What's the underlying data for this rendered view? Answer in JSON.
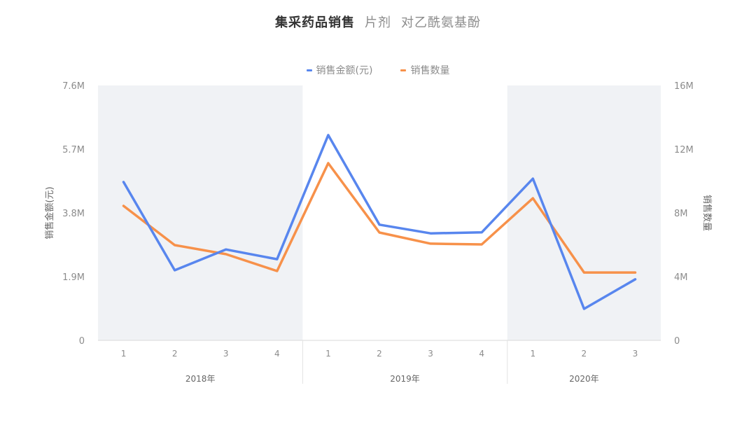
{
  "title": {
    "main": "集采药品销售",
    "subtitle_1": "片剂",
    "subtitle_2": "对乙酰氨基酚"
  },
  "legend": [
    {
      "label": "销售金额(元)",
      "color": "#5886EE"
    },
    {
      "label": "销售数量",
      "color": "#F7914A"
    }
  ],
  "axes": {
    "left_title": "销售金额(元)",
    "right_title": "销售数量",
    "left_ticks": [
      "0",
      "1.9M",
      "3.8M",
      "5.7M",
      "7.6M"
    ],
    "right_ticks": [
      "0",
      "4M",
      "8M",
      "12M",
      "16M"
    ]
  },
  "x_axis": {
    "quarters": [
      "1",
      "2",
      "3",
      "4",
      "1",
      "2",
      "3",
      "4",
      "1",
      "2",
      "3"
    ],
    "years": [
      "2018年",
      "2019年",
      "2020年"
    ]
  },
  "colors": {
    "amount": "#5886EE",
    "quantity": "#F7914A",
    "band": "#F0F2F5",
    "axis_text": "#8c8c8c"
  },
  "chart_data": {
    "type": "line",
    "title": "集采药品销售 片剂 对乙酰氨基酚",
    "categories": [
      "2018年 Q1",
      "2018年 Q2",
      "2018年 Q3",
      "2018年 Q4",
      "2019年 Q1",
      "2019年 Q2",
      "2019年 Q3",
      "2019年 Q4",
      "2020年 Q1",
      "2020年 Q2",
      "2020年 Q3"
    ],
    "series": [
      {
        "name": "销售金额(元)",
        "axis": "left",
        "unit": "M",
        "values": [
          4.72,
          2.09,
          2.71,
          2.42,
          6.12,
          3.45,
          3.19,
          3.22,
          4.82,
          0.94,
          1.82
        ]
      },
      {
        "name": "销售数量",
        "axis": "right",
        "unit": "M",
        "values": [
          8.44,
          5.98,
          5.41,
          4.35,
          11.12,
          6.77,
          6.07,
          6.02,
          8.92,
          4.26,
          4.26
        ]
      }
    ],
    "xlabel": "",
    "ylabel": "销售金额(元)",
    "ylabel_right": "销售数量",
    "ylim": [
      0,
      7.6
    ],
    "ylim_right": [
      0,
      16
    ],
    "yticks": [
      0,
      1.9,
      3.8,
      5.7,
      7.6
    ],
    "yticks_right": [
      0,
      4,
      8,
      12,
      16
    ],
    "grid": false,
    "legend_position": "top"
  }
}
